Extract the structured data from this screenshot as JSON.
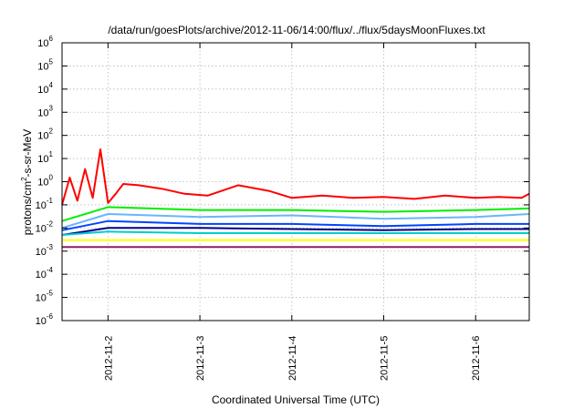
{
  "chart_data": {
    "type": "line",
    "title": "/data/run/goesPlots/archive/2012-11-06/14:00/flux/../flux/5daysMoonFluxes.txt",
    "xlabel": "Coordinated Universal Time (UTC)",
    "ylabel_base": "protons/cm",
    "ylabel_sup": "2",
    "ylabel_rest": "-s-sr-MeV",
    "yscale": "log",
    "ylim": [
      1e-06,
      1000000
    ],
    "y_ticks": [
      {
        "base": "10",
        "exp": "-6",
        "value": 1e-06
      },
      {
        "base": "10",
        "exp": "-5",
        "value": 1e-05
      },
      {
        "base": "10",
        "exp": "-4",
        "value": 0.0001
      },
      {
        "base": "10",
        "exp": "-3",
        "value": 0.001
      },
      {
        "base": "10",
        "exp": "-2",
        "value": 0.01
      },
      {
        "base": "10",
        "exp": "-1",
        "value": 0.1
      },
      {
        "base": "10",
        "exp": "0",
        "value": 1
      },
      {
        "base": "10",
        "exp": "1",
        "value": 10
      },
      {
        "base": "10",
        "exp": "2",
        "value": 100
      },
      {
        "base": "10",
        "exp": "3",
        "value": 1000
      },
      {
        "base": "10",
        "exp": "4",
        "value": 10000
      },
      {
        "base": "10",
        "exp": "5",
        "value": 100000
      },
      {
        "base": "10",
        "exp": "6",
        "value": 1000000
      }
    ],
    "xlim": [
      "2012-11-01T12:00",
      "2012-11-06T14:00"
    ],
    "x_ticks": [
      {
        "label": "2012-11-2",
        "value": "2012-11-02T00:00"
      },
      {
        "label": "2012-11-3",
        "value": "2012-11-03T00:00"
      },
      {
        "label": "2012-11-4",
        "value": "2012-11-04T00:00"
      },
      {
        "label": "2012-11-5",
        "value": "2012-11-05T00:00"
      },
      {
        "label": "2012-11-6",
        "value": "2012-11-06T00:00"
      }
    ],
    "grid": true,
    "series": [
      {
        "color": "#ff0000",
        "x": [
          "2012-11-01T12:00",
          "2012-11-01T14:00",
          "2012-11-01T16:00",
          "2012-11-01T18:00",
          "2012-11-01T20:00",
          "2012-11-01T22:00",
          "2012-11-02T00:00",
          "2012-11-02T02:00",
          "2012-11-02T04:00",
          "2012-11-02T08:00",
          "2012-11-02T14:00",
          "2012-11-02T20:00",
          "2012-11-03T02:00",
          "2012-11-03T10:00",
          "2012-11-03T18:00",
          "2012-11-04T00:00",
          "2012-11-04T08:00",
          "2012-11-04T16:00",
          "2012-11-05T00:00",
          "2012-11-05T08:00",
          "2012-11-05T16:00",
          "2012-11-06T00:00",
          "2012-11-06T06:00",
          "2012-11-06T12:00",
          "2012-11-06T14:00"
        ],
        "values": [
          0.1,
          1.5,
          0.15,
          3.5,
          0.2,
          25,
          0.12,
          0.3,
          0.8,
          0.7,
          0.5,
          0.3,
          0.25,
          0.7,
          0.4,
          0.2,
          0.25,
          0.2,
          0.22,
          0.18,
          0.25,
          0.2,
          0.22,
          0.2,
          0.3
        ]
      },
      {
        "color": "#00ee00",
        "x": [
          "2012-11-01T12:00",
          "2012-11-02T00:00",
          "2012-11-03T00:00",
          "2012-11-04T00:00",
          "2012-11-05T00:00",
          "2012-11-06T00:00",
          "2012-11-06T14:00"
        ],
        "values": [
          0.02,
          0.08,
          0.06,
          0.06,
          0.05,
          0.06,
          0.07
        ]
      },
      {
        "color": "#6ab4ff",
        "x": [
          "2012-11-01T12:00",
          "2012-11-02T00:00",
          "2012-11-03T00:00",
          "2012-11-04T00:00",
          "2012-11-05T00:00",
          "2012-11-06T00:00",
          "2012-11-06T14:00"
        ],
        "values": [
          0.01,
          0.04,
          0.03,
          0.035,
          0.025,
          0.03,
          0.04
        ]
      },
      {
        "color": "#0044ff",
        "x": [
          "2012-11-01T12:00",
          "2012-11-02T00:00",
          "2012-11-03T00:00",
          "2012-11-04T00:00",
          "2012-11-05T00:00",
          "2012-11-06T00:00",
          "2012-11-06T14:00"
        ],
        "values": [
          0.008,
          0.02,
          0.015,
          0.015,
          0.012,
          0.015,
          0.015
        ]
      },
      {
        "color": "#000088",
        "x": [
          "2012-11-01T12:00",
          "2012-11-02T00:00",
          "2012-11-03T00:00",
          "2012-11-04T00:00",
          "2012-11-05T00:00",
          "2012-11-06T00:00",
          "2012-11-06T14:00"
        ],
        "values": [
          0.005,
          0.01,
          0.01,
          0.009,
          0.008,
          0.009,
          0.009
        ]
      },
      {
        "color": "#00cccc",
        "x": [
          "2012-11-01T12:00",
          "2012-11-02T00:00",
          "2012-11-03T00:00",
          "2012-11-04T00:00",
          "2012-11-05T00:00",
          "2012-11-06T00:00",
          "2012-11-06T14:00"
        ],
        "values": [
          0.005,
          0.007,
          0.006,
          0.006,
          0.006,
          0.006,
          0.006
        ]
      },
      {
        "color": "#ffff00",
        "x": [
          "2012-11-01T12:00",
          "2012-11-02T00:00",
          "2012-11-03T00:00",
          "2012-11-04T00:00",
          "2012-11-05T00:00",
          "2012-11-06T00:00",
          "2012-11-06T14:00"
        ],
        "values": [
          0.003,
          0.003,
          0.003,
          0.003,
          0.003,
          0.003,
          0.003
        ]
      },
      {
        "color": "#8b2066",
        "x": [
          "2012-11-01T12:00",
          "2012-11-02T00:00",
          "2012-11-03T00:00",
          "2012-11-04T00:00",
          "2012-11-05T00:00",
          "2012-11-06T00:00",
          "2012-11-06T14:00"
        ],
        "values": [
          0.0015,
          0.0015,
          0.0015,
          0.0015,
          0.0015,
          0.0015,
          0.0015
        ]
      }
    ]
  }
}
